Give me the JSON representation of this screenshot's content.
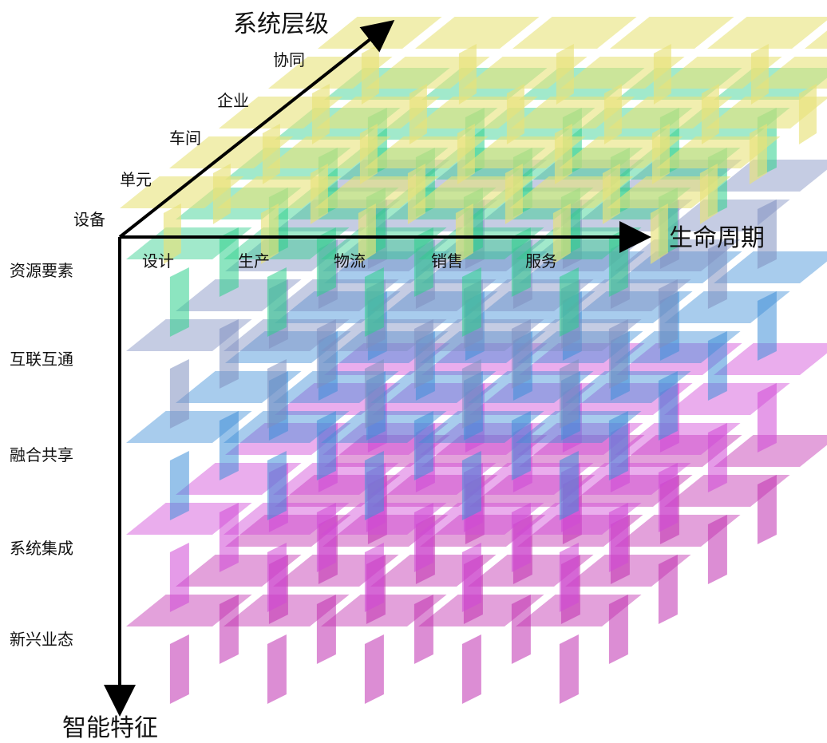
{
  "axes": {
    "system_level": "系统层级",
    "lifecycle": "生命周期",
    "intelligence": "智能特征"
  },
  "system_levels": [
    "设备",
    "单元",
    "车间",
    "企业",
    "协同"
  ],
  "lifecycle_stages": [
    "设计",
    "生产",
    "物流",
    "销售",
    "服务"
  ],
  "intelligence_features": [
    "资源要素",
    "互联互通",
    "融合共享",
    "系统集成",
    "新兴业态"
  ],
  "colors": {
    "system_level_layer": "#e8e27a",
    "resources": "#2ecf8c",
    "interconnect": "#7f8fc0",
    "fusion": "#3f8fd8",
    "integration": "#d049d6",
    "new_business": "#c02fb0",
    "axis": "#000000"
  }
}
